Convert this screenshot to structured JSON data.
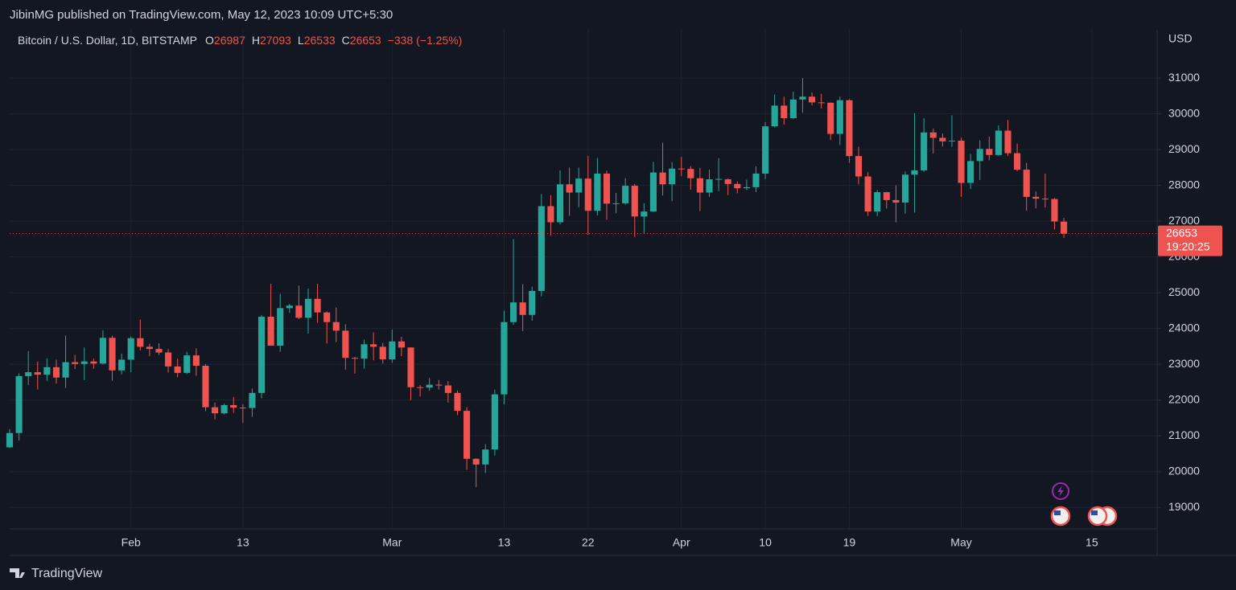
{
  "header": {
    "publisher": "JibinMG published on TradingView.com, May 12, 2023 10:09 UTC+5:30"
  },
  "chart_data": {
    "type": "candlestick",
    "symbol": "Bitcoin / U.S. Dollar, 1D, BITSTAMP",
    "ohlc_legend": {
      "open_label": "O",
      "open": 26987,
      "high_label": "H",
      "high": 27093,
      "low_label": "L",
      "low": 26533,
      "close_label": "C",
      "close": 26653,
      "change": "−338 (−1.25%)"
    },
    "currency": "USD",
    "up_color": "#26a69a",
    "down_color": "#ef5350",
    "x": [
      "2023-01-19",
      "2023-01-20",
      "2023-01-21",
      "2023-01-22",
      "2023-01-23",
      "2023-01-24",
      "2023-01-25",
      "2023-01-26",
      "2023-01-27",
      "2023-01-28",
      "2023-01-29",
      "2023-01-30",
      "2023-01-31",
      "2023-02-01",
      "2023-02-02",
      "2023-02-03",
      "2023-02-04",
      "2023-02-05",
      "2023-02-06",
      "2023-02-07",
      "2023-02-08",
      "2023-02-09",
      "2023-02-10",
      "2023-02-11",
      "2023-02-12",
      "2023-02-13",
      "2023-02-14",
      "2023-02-15",
      "2023-02-16",
      "2023-02-17",
      "2023-02-18",
      "2023-02-19",
      "2023-02-20",
      "2023-02-21",
      "2023-02-22",
      "2023-02-23",
      "2023-02-24",
      "2023-02-25",
      "2023-02-26",
      "2023-02-27",
      "2023-02-28",
      "2023-03-01",
      "2023-03-02",
      "2023-03-03",
      "2023-03-04",
      "2023-03-05",
      "2023-03-06",
      "2023-03-07",
      "2023-03-08",
      "2023-03-09",
      "2023-03-10",
      "2023-03-11",
      "2023-03-12",
      "2023-03-13",
      "2023-03-14",
      "2023-03-15",
      "2023-03-16",
      "2023-03-17",
      "2023-03-18",
      "2023-03-19",
      "2023-03-20",
      "2023-03-21",
      "2023-03-22",
      "2023-03-23",
      "2023-03-24",
      "2023-03-25",
      "2023-03-26",
      "2023-03-27",
      "2023-03-28",
      "2023-03-29",
      "2023-03-30",
      "2023-03-31",
      "2023-04-01",
      "2023-04-02",
      "2023-04-03",
      "2023-04-04",
      "2023-04-05",
      "2023-04-06",
      "2023-04-07",
      "2023-04-08",
      "2023-04-09",
      "2023-04-10",
      "2023-04-11",
      "2023-04-12",
      "2023-04-13",
      "2023-04-14",
      "2023-04-15",
      "2023-04-16",
      "2023-04-17",
      "2023-04-18",
      "2023-04-19",
      "2023-04-20",
      "2023-04-21",
      "2023-04-22",
      "2023-04-23",
      "2023-04-24",
      "2023-04-25",
      "2023-04-26",
      "2023-04-27",
      "2023-04-28",
      "2023-04-29",
      "2023-04-30",
      "2023-05-01",
      "2023-05-02",
      "2023-05-03",
      "2023-05-04",
      "2023-05-05",
      "2023-05-06",
      "2023-05-07",
      "2023-05-08",
      "2023-05-09",
      "2023-05-10",
      "2023-05-11",
      "2023-05-12"
    ],
    "open": [
      20680,
      21080,
      22670,
      22780,
      22710,
      22920,
      22630,
      23060,
      23010,
      23080,
      23020,
      23740,
      22830,
      23130,
      23730,
      23490,
      23430,
      23330,
      22940,
      22760,
      23250,
      22960,
      21800,
      21630,
      21860,
      21790,
      21780,
      22200,
      24330,
      23520,
      24570,
      24640,
      24300,
      24830,
      24450,
      24180,
      23940,
      23180,
      23160,
      23560,
      23490,
      23140,
      23640,
      23470,
      22360,
      22350,
      22430,
      22410,
      22200,
      21700,
      20360,
      20200,
      20620,
      22160,
      24180,
      24730,
      24380,
      25050,
      27420,
      26970,
      28030,
      27800,
      28190,
      27290,
      28330,
      27490,
      27500,
      27990,
      27130,
      27270,
      28360,
      28030,
      28470,
      28460,
      28200,
      27800,
      28170,
      28170,
      28040,
      27920,
      27950,
      28330,
      29650,
      30230,
      29880,
      30400,
      30480,
      30320,
      30310,
      29440,
      30380,
      28820,
      28250,
      27270,
      27810,
      27590,
      27520,
      28300,
      28420,
      29480,
      29330,
      29230,
      29250,
      28070,
      28680,
      29020,
      28850,
      29530,
      28900,
      28440,
      27680,
      27630,
      27620,
      26987
    ],
    "high": [
      21190,
      22750,
      23370,
      23080,
      23170,
      23130,
      23800,
      23260,
      23470,
      23160,
      23950,
      23800,
      23300,
      23780,
      24250,
      23580,
      23590,
      23430,
      23160,
      23350,
      23450,
      23010,
      21930,
      21900,
      22090,
      21890,
      22320,
      24380,
      25250,
      24970,
      24690,
      25200,
      25120,
      25250,
      24480,
      24590,
      24120,
      23210,
      23690,
      23890,
      23600,
      23970,
      23770,
      23480,
      22420,
      22620,
      22560,
      22530,
      22270,
      21800,
      20370,
      20770,
      22290,
      24500,
      26500,
      25240,
      25170,
      27760,
      27730,
      28420,
      28500,
      28500,
      28820,
      28770,
      28410,
      27790,
      28200,
      28040,
      27500,
      28660,
      29190,
      28650,
      28800,
      28540,
      28490,
      28440,
      28760,
      28190,
      28110,
      28160,
      28530,
      29770,
      30540,
      30480,
      30620,
      31000,
      30600,
      30560,
      30320,
      30480,
      30410,
      29080,
      28370,
      27870,
      27820,
      28000,
      28390,
      30020,
      29880,
      29590,
      29450,
      29960,
      29330,
      28880,
      29260,
      29360,
      29680,
      29830,
      29170,
      28630,
      27830,
      28330,
      27650,
      27093
    ],
    "low": [
      20660,
      20870,
      22420,
      22300,
      22540,
      22460,
      22340,
      22870,
      22560,
      22880,
      22990,
      22540,
      22720,
      22780,
      23390,
      23230,
      23260,
      22770,
      22640,
      22730,
      22680,
      21690,
      21460,
      21600,
      21640,
      21360,
      21530,
      22050,
      23520,
      23350,
      24440,
      24260,
      23860,
      24160,
      23580,
      23620,
      22850,
      22740,
      22880,
      23110,
      23020,
      23040,
      23230,
      22000,
      22100,
      22260,
      22300,
      21930,
      21580,
      20050,
      19570,
      19960,
      20450,
      21880,
      24100,
      23930,
      24220,
      24900,
      26600,
      26910,
      27150,
      27390,
      26620,
      27160,
      27040,
      27220,
      27460,
      26560,
      26660,
      27260,
      27720,
      27560,
      28260,
      27880,
      27280,
      27680,
      27840,
      27730,
      27780,
      27870,
      27810,
      28180,
      29620,
      29700,
      29860,
      30030,
      30240,
      30150,
      29270,
      29130,
      28630,
      28030,
      27150,
      27140,
      27350,
      26970,
      27210,
      27240,
      28380,
      28890,
      29090,
      29080,
      27680,
      27900,
      28150,
      28700,
      28830,
      28820,
      28400,
      27290,
      27360,
      27380,
      26770,
      26533
    ],
    "close": [
      21080,
      22670,
      22780,
      22710,
      22920,
      22630,
      23060,
      23010,
      23080,
      23020,
      23740,
      22830,
      23130,
      23730,
      23490,
      23430,
      23330,
      22940,
      22760,
      23250,
      22960,
      21800,
      21630,
      21860,
      21790,
      21780,
      22200,
      24330,
      23520,
      24570,
      24640,
      24300,
      24830,
      24450,
      24180,
      23940,
      23180,
      23160,
      23560,
      23490,
      23140,
      23640,
      23470,
      22360,
      22350,
      22430,
      22410,
      22200,
      21700,
      20360,
      20200,
      20620,
      22160,
      24180,
      24730,
      24380,
      25050,
      27420,
      26970,
      28030,
      27800,
      28190,
      27290,
      28330,
      27490,
      27500,
      27990,
      27130,
      27270,
      28360,
      28030,
      28470,
      28460,
      28200,
      27800,
      28170,
      28180,
      28040,
      27920,
      27950,
      28330,
      29650,
      30230,
      29880,
      30400,
      30480,
      30320,
      30310,
      29440,
      30380,
      28820,
      28250,
      27270,
      27810,
      27590,
      27520,
      28300,
      28420,
      29480,
      29330,
      29230,
      29250,
      28070,
      28680,
      29020,
      28850,
      29530,
      28900,
      28440,
      27680,
      27630,
      27620,
      26990,
      26653
    ],
    "last_price": {
      "value": 26653,
      "countdown": "19:20:25"
    },
    "xlim": [
      "2023-01-19",
      "2023-05-22"
    ],
    "xticks": [
      {
        "value": "2023-02-01",
        "label": "Feb"
      },
      {
        "value": "2023-02-13",
        "label": "13"
      },
      {
        "value": "2023-03-01",
        "label": "Mar"
      },
      {
        "value": "2023-03-13",
        "label": "13"
      },
      {
        "value": "2023-03-22",
        "label": "22"
      },
      {
        "value": "2023-04-01",
        "label": "Apr"
      },
      {
        "value": "2023-04-10",
        "label": "10"
      },
      {
        "value": "2023-04-19",
        "label": "19"
      },
      {
        "value": "2023-05-01",
        "label": "May"
      },
      {
        "value": "2023-05-15",
        "label": "15"
      }
    ],
    "ylim": [
      18400,
      32350
    ],
    "yticks": [
      19000,
      20000,
      21000,
      22000,
      23000,
      24000,
      25000,
      26000,
      27000,
      28000,
      29000,
      30000,
      31000
    ],
    "grid": true
  },
  "footer": {
    "brand": "TradingView"
  }
}
